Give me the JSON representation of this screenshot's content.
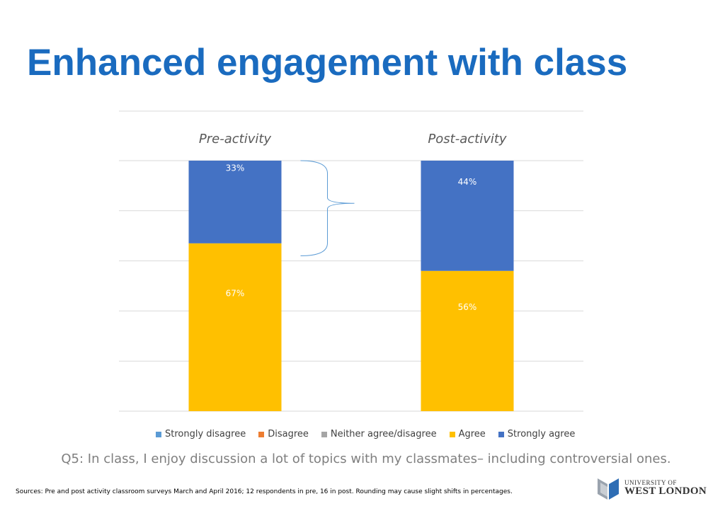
{
  "slide": {
    "title": "Enhanced engagement with class",
    "question": "Q5: In class, I enjoy discussion a lot of topics with my classmates– including controversial ones.",
    "sources": "Sources: Pre and post activity classroom surveys March and April 2016; 12 respondents in pre, 16 in post. Rounding may cause slight  shifts in percentages.",
    "logo": {
      "line1": "UNIVERSITY OF",
      "line2": "WEST LONDON",
      "icon": "university-shield-icon"
    }
  },
  "chart_data": {
    "type": "bar",
    "stacked": true,
    "categories": [
      "Pre-activity",
      "Post-activity"
    ],
    "series": [
      {
        "name": "Strongly disagree",
        "color": "#5B9BD5",
        "values": [
          0,
          0
        ],
        "labels": [
          "",
          ""
        ]
      },
      {
        "name": "Disagree",
        "color": "#ED7D31",
        "values": [
          0,
          0
        ],
        "labels": [
          "",
          ""
        ]
      },
      {
        "name": "Neither agree/disagree",
        "color": "#A5A5A5",
        "values": [
          0,
          0
        ],
        "labels": [
          "",
          ""
        ]
      },
      {
        "name": "Agree",
        "color": "#FFC000",
        "values": [
          67,
          56
        ],
        "labels": [
          "67%",
          "56%"
        ]
      },
      {
        "name": "Strongly agree",
        "color": "#4472C4",
        "values": [
          33,
          44
        ],
        "labels": [
          "33%",
          "44%"
        ]
      }
    ],
    "ylim": [
      0,
      100
    ],
    "grid": true,
    "category_label_position": "top",
    "legend_position": "bottom",
    "annotation": "brace"
  }
}
